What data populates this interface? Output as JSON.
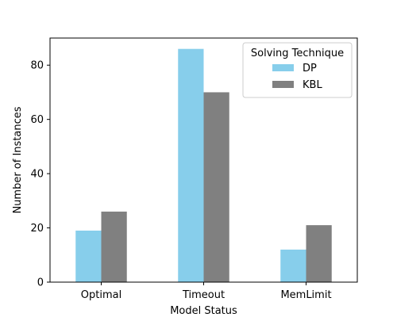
{
  "chart_data": {
    "type": "bar",
    "title": "",
    "xlabel": "Model Status",
    "ylabel": "Number of Instances",
    "categories": [
      "Optimal",
      "Timeout",
      "MemLimit"
    ],
    "series": [
      {
        "name": "DP",
        "values": [
          19,
          86,
          12
        ],
        "color": "#87ceeb"
      },
      {
        "name": "KBL",
        "values": [
          26,
          70,
          21
        ],
        "color": "#808080"
      }
    ],
    "ylim": [
      0,
      90
    ],
    "yticks": [
      0,
      20,
      40,
      60,
      80
    ],
    "grid": false,
    "legend": {
      "title": "Solving Technique",
      "placement": "top-right"
    }
  }
}
